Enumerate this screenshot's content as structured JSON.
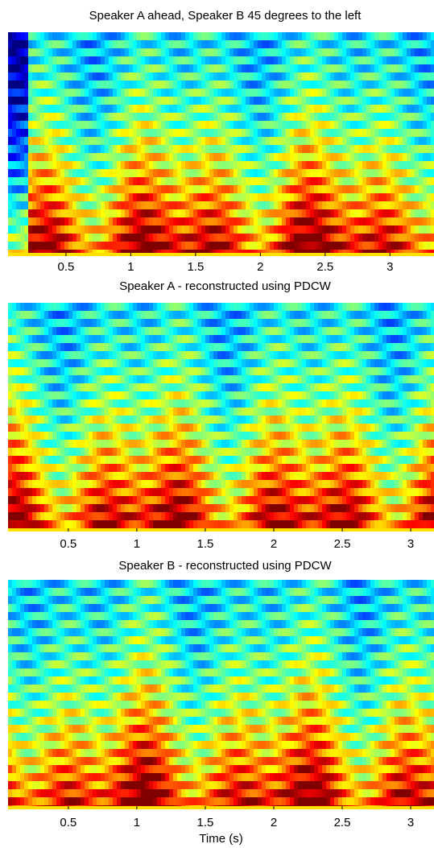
{
  "chart_data": [
    {
      "type": "spectrogram",
      "title": "Speaker A ahead, Speaker B 45 degrees to the left",
      "xlim": [
        0.053,
        3.34
      ],
      "xticks": [
        0.5,
        1,
        1.5,
        2,
        2.5,
        3
      ]
    },
    {
      "type": "spectrogram",
      "title": "Speaker A - reconstructed using PDCW",
      "xlim": [
        0.06,
        3.17
      ],
      "xticks": [
        0.5,
        1,
        1.5,
        2,
        2.5,
        3
      ]
    },
    {
      "type": "spectrogram",
      "title": "Speaker B - reconstructed using PDCW",
      "xlim": [
        0.06,
        3.17
      ],
      "xticks": [
        0.5,
        1,
        1.5,
        2,
        2.5,
        3
      ],
      "xlabel": "Time (s)"
    }
  ]
}
